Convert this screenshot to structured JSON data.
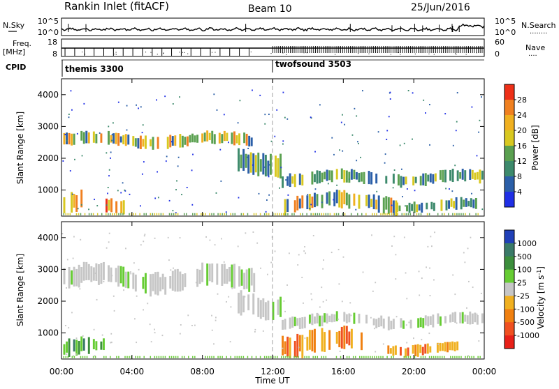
{
  "header": {
    "station": "Rankin Inlet (fitACF)",
    "beam": "Beam 10",
    "date": "25/Jun/2016"
  },
  "noise_panel": {
    "left_label": "N.Sky",
    "right_label": "N.Search",
    "right_legend": "........",
    "left_ticks": [
      "10^5",
      "10^0"
    ],
    "right_ticks": [
      "10^5",
      "10^0"
    ]
  },
  "freq_panel": {
    "left_label": "Freq.",
    "left_unit": "[MHz]",
    "right_label": "Nave",
    "right_legend": "....",
    "left_ticks": [
      "18",
      "8"
    ],
    "right_ticks": [
      "60",
      "0"
    ]
  },
  "cpid": {
    "label": "CPID",
    "modes": [
      {
        "name": "themis 3300",
        "start_hour": 0
      },
      {
        "name": "twofsound 3503",
        "start_hour": 12
      }
    ]
  },
  "chart_data": [
    {
      "type": "heatmap",
      "name": "power",
      "ylabel": "Slant Range [km]",
      "ylim": [
        180,
        4500
      ],
      "yticks": [
        "1000",
        "2000",
        "3000",
        "4000"
      ],
      "colorbar_label": "Power [dB]",
      "colorbar_ticks": [
        "4",
        "8",
        "12",
        "16",
        "20",
        "24",
        "28"
      ],
      "colorbar_range": [
        0,
        32
      ],
      "colors": [
        "#1f2fe6",
        "#2b5fa8",
        "#3d8a6c",
        "#5aa050",
        "#d8c820",
        "#f0b020",
        "#f08020",
        "#ee3018"
      ],
      "bands": [
        {
          "t0": 0.1,
          "t1": 10.8,
          "r0": 2350,
          "r1": 2800,
          "level": "high"
        },
        {
          "t0": 10.0,
          "t1": 12.5,
          "r0": 1500,
          "r1": 2300,
          "level": "mid"
        },
        {
          "t0": 12.5,
          "t1": 23.9,
          "r0": 1150,
          "r1": 1600,
          "level": "mid"
        },
        {
          "t0": 0.1,
          "t1": 1.2,
          "r0": 200,
          "r1": 900,
          "level": "very-high"
        },
        {
          "t0": 2.5,
          "t1": 3.6,
          "r0": 200,
          "r1": 700,
          "level": "very-high"
        },
        {
          "t0": 12.5,
          "t1": 19.0,
          "r0": 300,
          "r1": 900,
          "level": "high"
        },
        {
          "t0": 19.0,
          "t1": 23.5,
          "r0": 300,
          "r1": 700,
          "level": "mid"
        }
      ]
    },
    {
      "type": "heatmap",
      "name": "velocity",
      "ylabel": "Slant Range [km]",
      "xlabel": "Time UT",
      "ylim": [
        180,
        4500
      ],
      "yticks": [
        "1000",
        "2000",
        "3000",
        "4000"
      ],
      "xlim": [
        0,
        24
      ],
      "xticks": [
        "00:00",
        "04:00",
        "08:00",
        "12:00",
        "16:00",
        "20:00",
        "00:00"
      ],
      "colorbar_label": "Velocity [m s-1]",
      "colorbar_label_main": "Velocity [m s",
      "colorbar_label_sup": "-1",
      "colorbar_label_end": "]",
      "colorbar_ticks": [
        "1000",
        "500",
        "100",
        "25",
        "-25",
        "-100",
        "-500",
        "-1000"
      ],
      "colors": [
        "#2040b8",
        "#3a7a68",
        "#3c8e3c",
        "#66cc33",
        "#c6c6c6",
        "#f0b020",
        "#f08010",
        "#f05020",
        "#e82018"
      ],
      "bands": [
        {
          "t0": 0.1,
          "t1": 11.0,
          "r0": 2300,
          "r1": 3100,
          "level": "ground"
        },
        {
          "t0": 10.0,
          "t1": 12.5,
          "r0": 1500,
          "r1": 2300,
          "level": "ground"
        },
        {
          "t0": 12.5,
          "t1": 23.9,
          "r0": 1150,
          "r1": 1600,
          "level": "ground"
        },
        {
          "t0": 12.5,
          "t1": 17.0,
          "r0": 250,
          "r1": 1100,
          "level": "negative"
        },
        {
          "t0": 18.5,
          "t1": 22.5,
          "r0": 300,
          "r1": 700,
          "level": "negative"
        },
        {
          "t0": 0.1,
          "t1": 2.5,
          "r0": 200,
          "r1": 800,
          "level": "positive"
        }
      ]
    }
  ]
}
